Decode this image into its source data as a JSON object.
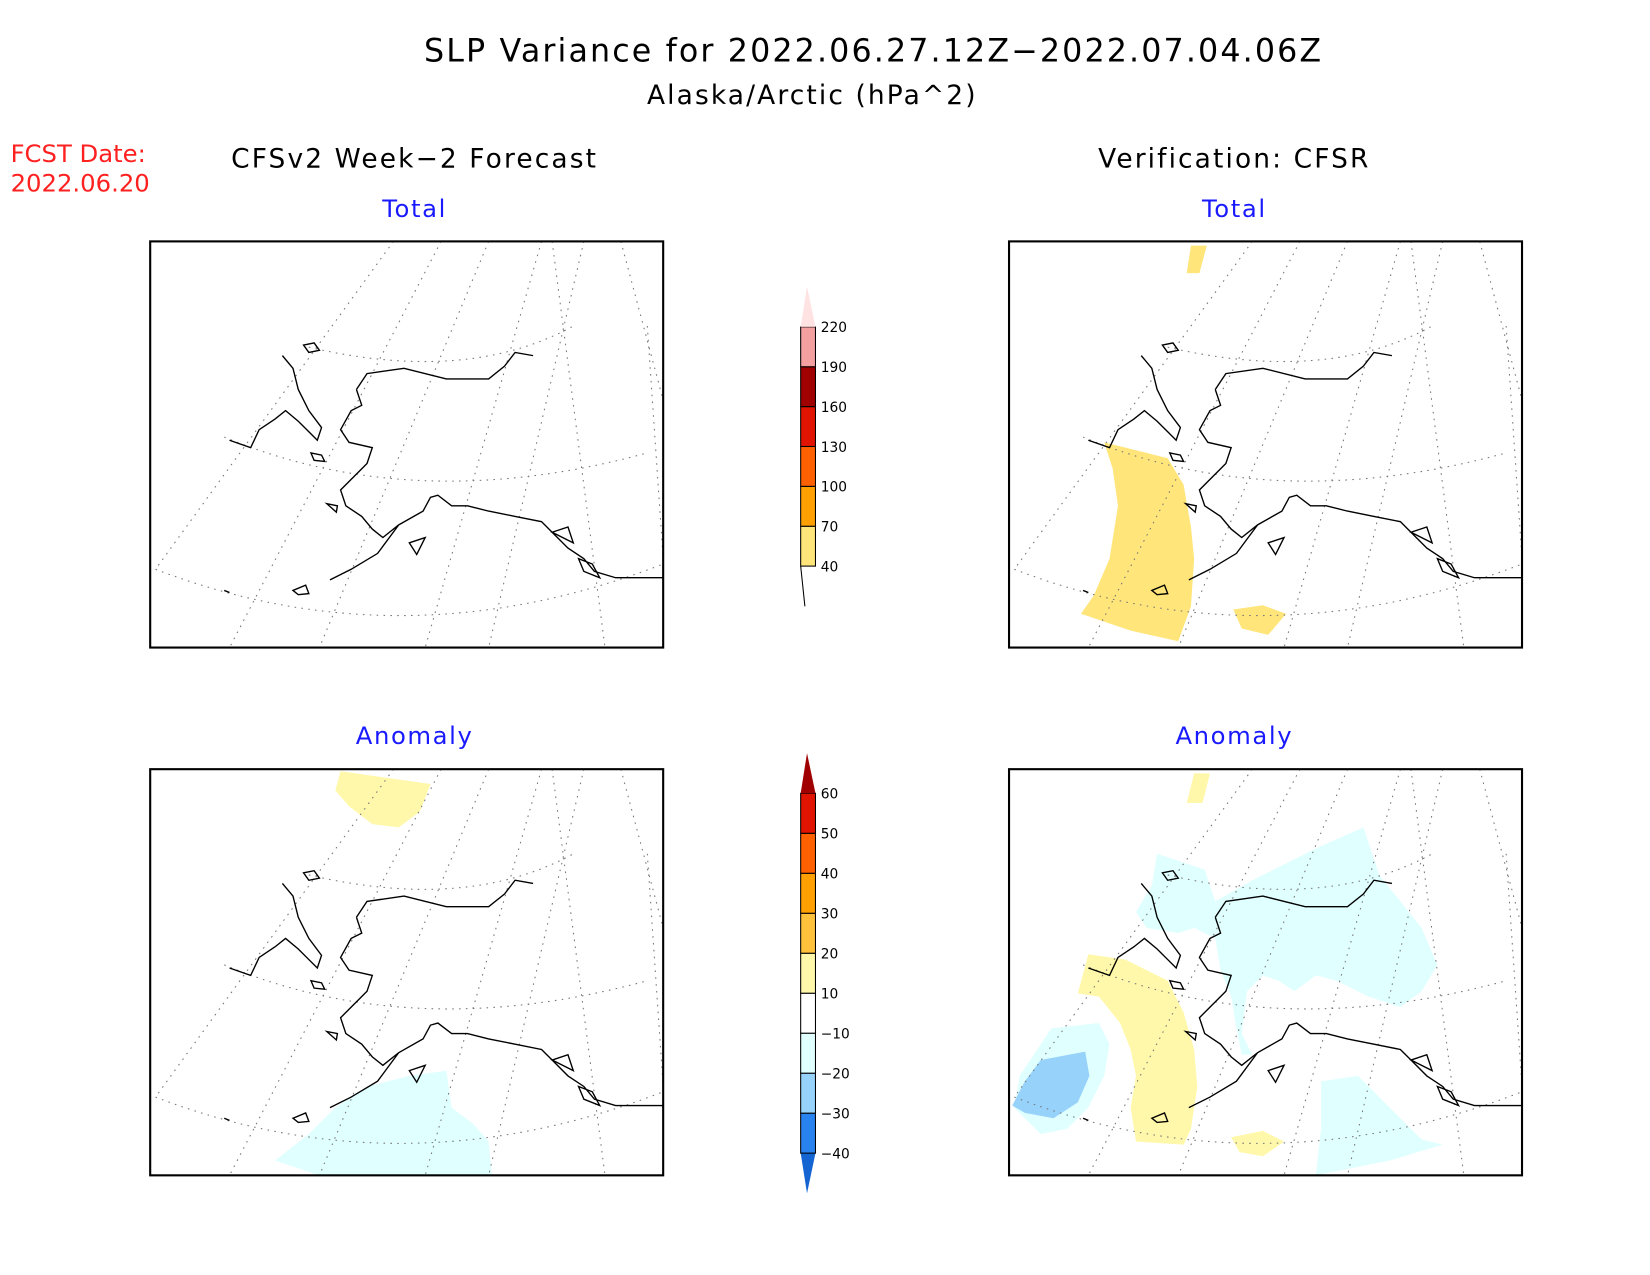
{
  "title": "SLP Variance for 2022.06.27.12Z−2022.07.04.06Z",
  "subtitle": "Alaska/Arctic (hPa^2)",
  "fcst_label": "FCST Date:",
  "fcst_date": "2022.06.20",
  "left_header": "CFSv2 Week−2 Forecast",
  "right_header": "Verification: CFSR",
  "panels": {
    "total": "Total",
    "anomaly": "Anomaly"
  },
  "chart_data": [
    {
      "type": "heatmap",
      "name": "total-colorbar",
      "levels": [
        "40",
        "70",
        "100",
        "130",
        "160",
        "190",
        "220"
      ],
      "colors": [
        "#ffe57a",
        "#ffa000",
        "#ff6000",
        "#e01400",
        "#a00000",
        "#f4a0a0",
        "#ffe2e2"
      ],
      "below_color": "#ffffff"
    },
    {
      "type": "heatmap",
      "name": "anomaly-colorbar",
      "levels": [
        "−40",
        "−30",
        "−20",
        "−10",
        "10",
        "20",
        "30",
        "40",
        "50",
        "60"
      ],
      "colors": [
        "#1464d2",
        "#2882f0",
        "#96d2fa",
        "#e0ffff",
        "#ffffff",
        "#fff8aa",
        "#ffc03c",
        "#ffa000",
        "#ff6000",
        "#e01400",
        "#a00000"
      ]
    }
  ]
}
